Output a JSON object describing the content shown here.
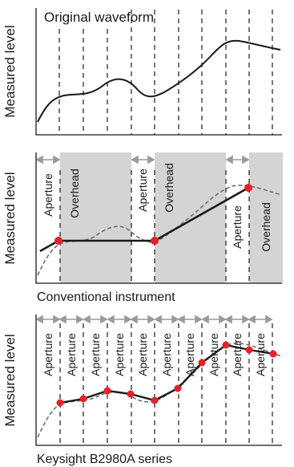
{
  "panels": {
    "top": {
      "title": "Original waveform",
      "ylabel": "Measured level"
    },
    "middle": {
      "ylabel": "Measured level",
      "caption": "Conventional instrument",
      "aperture_label": "Aperture",
      "overhead_label": "Overhead"
    },
    "bottom": {
      "ylabel": "Measured level",
      "caption": "Keysight B2980A series",
      "aperture_label": "Aperture"
    }
  },
  "colors": {
    "shade": "#d4d4d4",
    "arrow": "#9a9a9a",
    "sample": "#e8202a",
    "line": "#1a1a1a",
    "dashed_wave": "#707070"
  },
  "chart_data": {
    "type": "line",
    "description_of_series": "waveform",
    "waveform_y": [
      0.85,
      0.47,
      0.42,
      0.4,
      0.35,
      0.3,
      0.29,
      0.35,
      0.43,
      0.41,
      0.33,
      0.27,
      0.21,
      0.14,
      0.06,
      0.0,
      0.02,
      0.06,
      0.09,
      0.11
    ],
    "conventional_samples": [
      0.5,
      0.5,
      0.0
    ],
    "b2980a_samples_count": 10
  }
}
